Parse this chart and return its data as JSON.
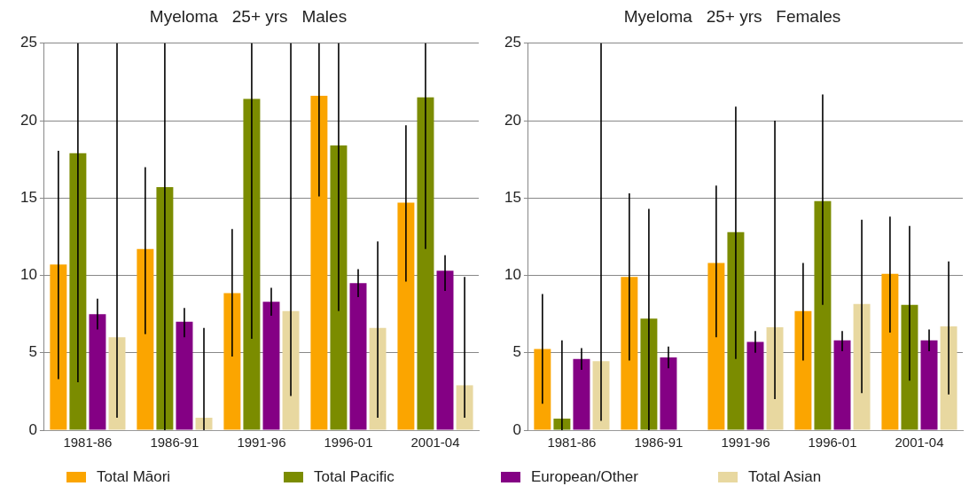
{
  "chart_data": [
    {
      "type": "bar",
      "title": "Myeloma   25+ yrs   Males",
      "categories": [
        "1981-86",
        "1986-91",
        "1991-96",
        "1996-01",
        "2001-04"
      ],
      "ylim": [
        0,
        25
      ],
      "yticks": [
        0,
        5,
        10,
        15,
        20,
        25
      ],
      "grid": "y",
      "legend": "bottom",
      "series": [
        {
          "name": "Total Māori",
          "color": "#fba500",
          "values": [
            10.7,
            11.7,
            8.85,
            21.6,
            14.7
          ],
          "errors": [
            [
              3.3,
              18.05
            ],
            [
              6.2,
              17.0
            ],
            [
              4.75,
              13.0
            ],
            [
              15.1,
              25
            ],
            [
              9.6,
              19.7
            ]
          ]
        },
        {
          "name": "Total Pacific",
          "color": "#7b8c00",
          "values": [
            17.9,
            15.7,
            21.4,
            18.4,
            21.5
          ],
          "errors": [
            [
              3.1,
              25
            ],
            [
              0,
              25
            ],
            [
              5.9,
              25
            ],
            [
              7.7,
              25
            ],
            [
              11.7,
              25
            ]
          ]
        },
        {
          "name": "European/Other",
          "color": "#840084",
          "values": [
            7.5,
            7.0,
            8.3,
            9.5,
            10.3
          ],
          "errors": [
            [
              6.5,
              8.5
            ],
            [
              6.0,
              7.9
            ],
            [
              7.4,
              9.2
            ],
            [
              8.6,
              10.4
            ],
            [
              9.0,
              11.3
            ]
          ]
        },
        {
          "name": "Total Asian",
          "color": "#e8d8a0",
          "values": [
            6.0,
            0.8,
            7.7,
            6.6,
            2.9
          ],
          "errors": [
            [
              0.8,
              25
            ],
            [
              0,
              6.6
            ],
            [
              2.2,
              25
            ],
            [
              0.8,
              12.2
            ],
            [
              0.8,
              9.9
            ]
          ]
        }
      ]
    },
    {
      "type": "bar",
      "title": "Myeloma   25+ yrs   Females",
      "categories": [
        "1981-86",
        "1986-91",
        "1991-96",
        "1996-01",
        "2001-04"
      ],
      "ylim": [
        0,
        25
      ],
      "yticks": [
        0,
        5,
        10,
        15,
        20,
        25
      ],
      "grid": "y",
      "series": [
        {
          "color": "#fba500",
          "values": [
            5.25,
            9.9,
            10.8,
            7.7,
            10.1
          ],
          "errors": [
            [
              1.7,
              8.8
            ],
            [
              4.5,
              15.3
            ],
            [
              6.0,
              15.8
            ],
            [
              4.5,
              10.8
            ],
            [
              6.3,
              13.8
            ]
          ]
        },
        {
          "color": "#7b8c00",
          "values": [
            0.75,
            7.2,
            12.8,
            14.8,
            8.1
          ],
          "errors": [
            [
              0,
              5.8
            ],
            [
              0,
              14.3
            ],
            [
              4.6,
              20.9
            ],
            [
              8.1,
              21.7
            ],
            [
              3.2,
              13.2
            ]
          ]
        },
        {
          "color": "#840084",
          "values": [
            4.6,
            4.7,
            5.7,
            5.8,
            5.8
          ],
          "errors": [
            [
              3.9,
              5.3
            ],
            [
              4.0,
              5.4
            ],
            [
              5.0,
              6.4
            ],
            [
              5.1,
              6.4
            ],
            [
              5.1,
              6.5
            ]
          ]
        },
        {
          "color": "#e8d8a0",
          "values": [
            4.45,
            null,
            6.65,
            8.15,
            6.7
          ],
          "errors": [
            [
              0.6,
              25
            ],
            null,
            [
              2.0,
              20.0
            ],
            [
              2.4,
              13.6
            ],
            [
              2.3,
              10.9
            ]
          ]
        }
      ]
    }
  ]
}
